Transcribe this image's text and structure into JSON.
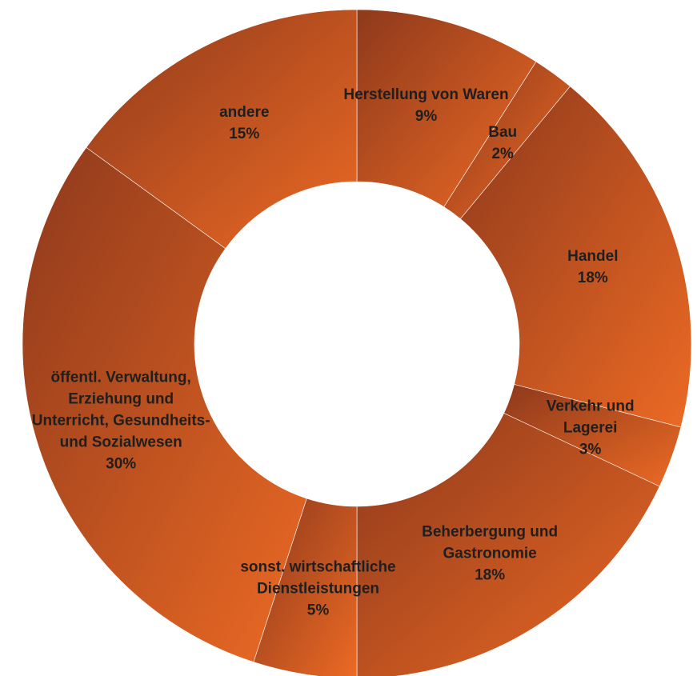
{
  "chart_data": {
    "type": "donut",
    "categories": [
      "Herstellung von Waren",
      "Bau",
      "Handel",
      "Verkehr und Lagerei",
      "Beherbergung und\nGastronomie",
      "sonst. wirtschaftliche\nDienstleistungen",
      "öffentl. Verwaltung,\nErziehung und\nUnterricht, Gesundheits-\nund Sozialwesen",
      "andere"
    ],
    "values": [
      9,
      2,
      18,
      3,
      18,
      5,
      30,
      15
    ],
    "value_labels": [
      "9%",
      "2%",
      "18%",
      "3%",
      "18%",
      "5%",
      "30%",
      "15%"
    ],
    "color": "#ec6a24"
  }
}
